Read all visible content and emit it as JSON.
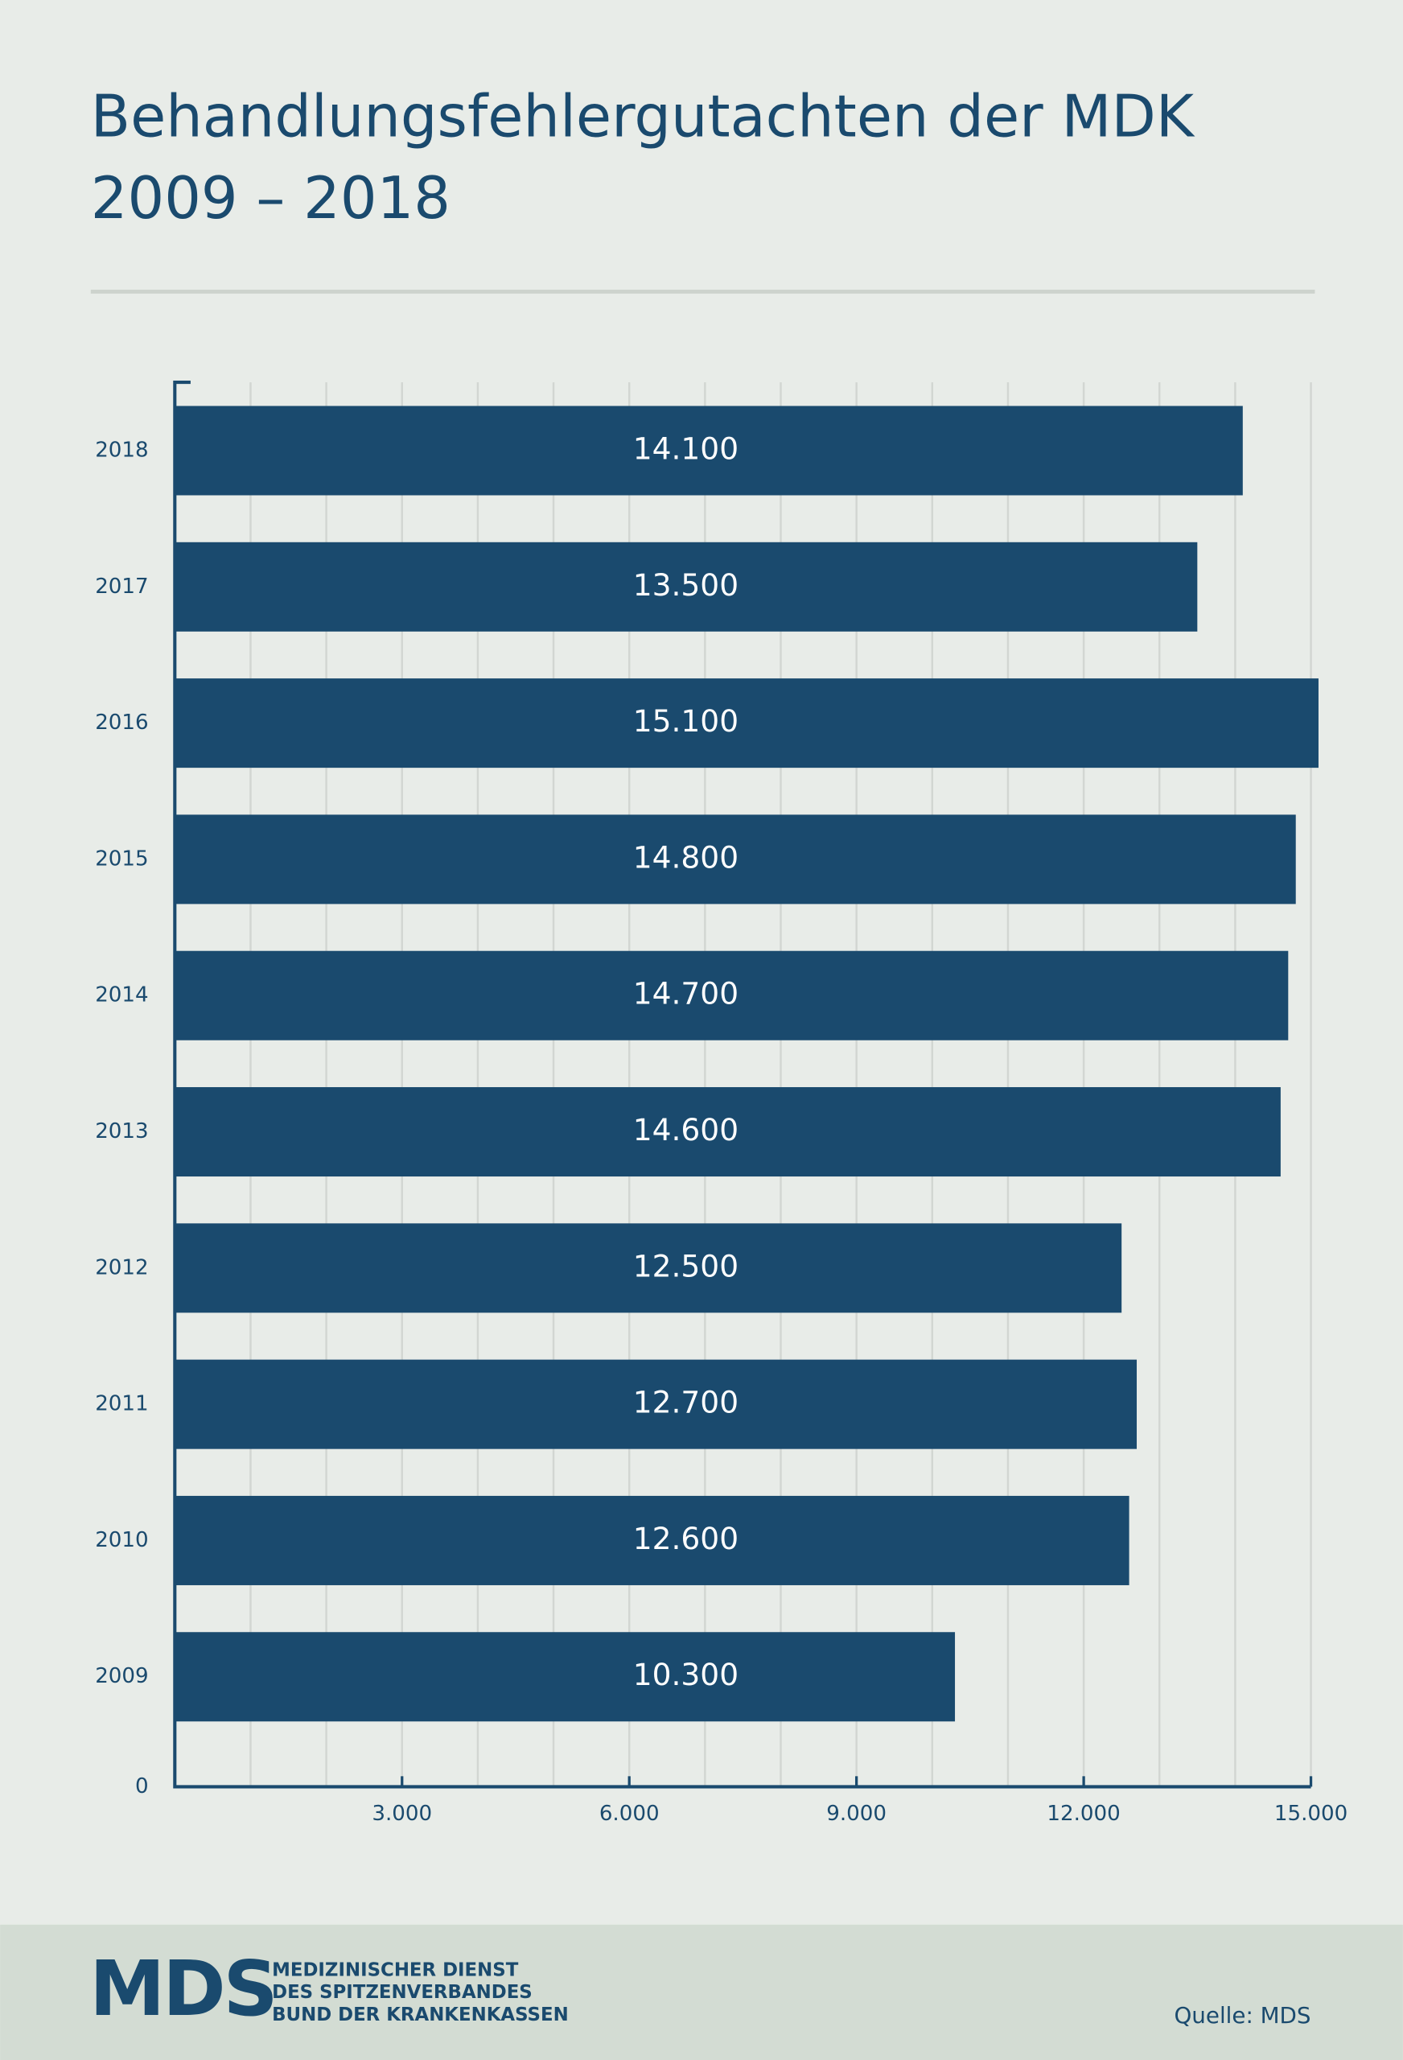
{
  "title": "Behandlungsfehlergutachten der MDK",
  "subtitle": "2009 – 2018",
  "chart_data": {
    "type": "bar",
    "orientation": "horizontal",
    "color": "#1a4a6e",
    "categories": [
      "2018",
      "2017",
      "2016",
      "2015",
      "2014",
      "2013",
      "2012",
      "2011",
      "2010",
      "2009"
    ],
    "values": [
      14100,
      13500,
      15100,
      14800,
      14700,
      14600,
      12500,
      12700,
      12600,
      10300
    ],
    "value_labels": [
      "14.100",
      "13.500",
      "15.100",
      "14.800",
      "14.700",
      "14.600",
      "12.500",
      "12.700",
      "12.600",
      "10.300"
    ],
    "xlim": [
      0,
      15000
    ],
    "xticks": [
      0,
      {
        "value": 3000,
        "label": "3.000"
      },
      {
        "value": 6000,
        "label": "6.000"
      },
      {
        "value": 9000,
        "label": "9.000"
      },
      {
        "value": 12000,
        "label": "12.000"
      },
      {
        "value": 15000,
        "label": "15.000"
      }
    ],
    "xgrid": [
      1000,
      2000,
      3000,
      4000,
      5000,
      6000,
      7000,
      8000,
      9000,
      10000,
      11000,
      12000,
      13000,
      14000,
      15000
    ],
    "grid": true
  },
  "footer": {
    "logo": "MDS",
    "org_lines": [
      "MEDIZINISCHER DIENST",
      "DES SPITZENVERBANDES",
      "BUND DER KRANKENKASSEN"
    ],
    "source": "Quelle: MDS"
  }
}
